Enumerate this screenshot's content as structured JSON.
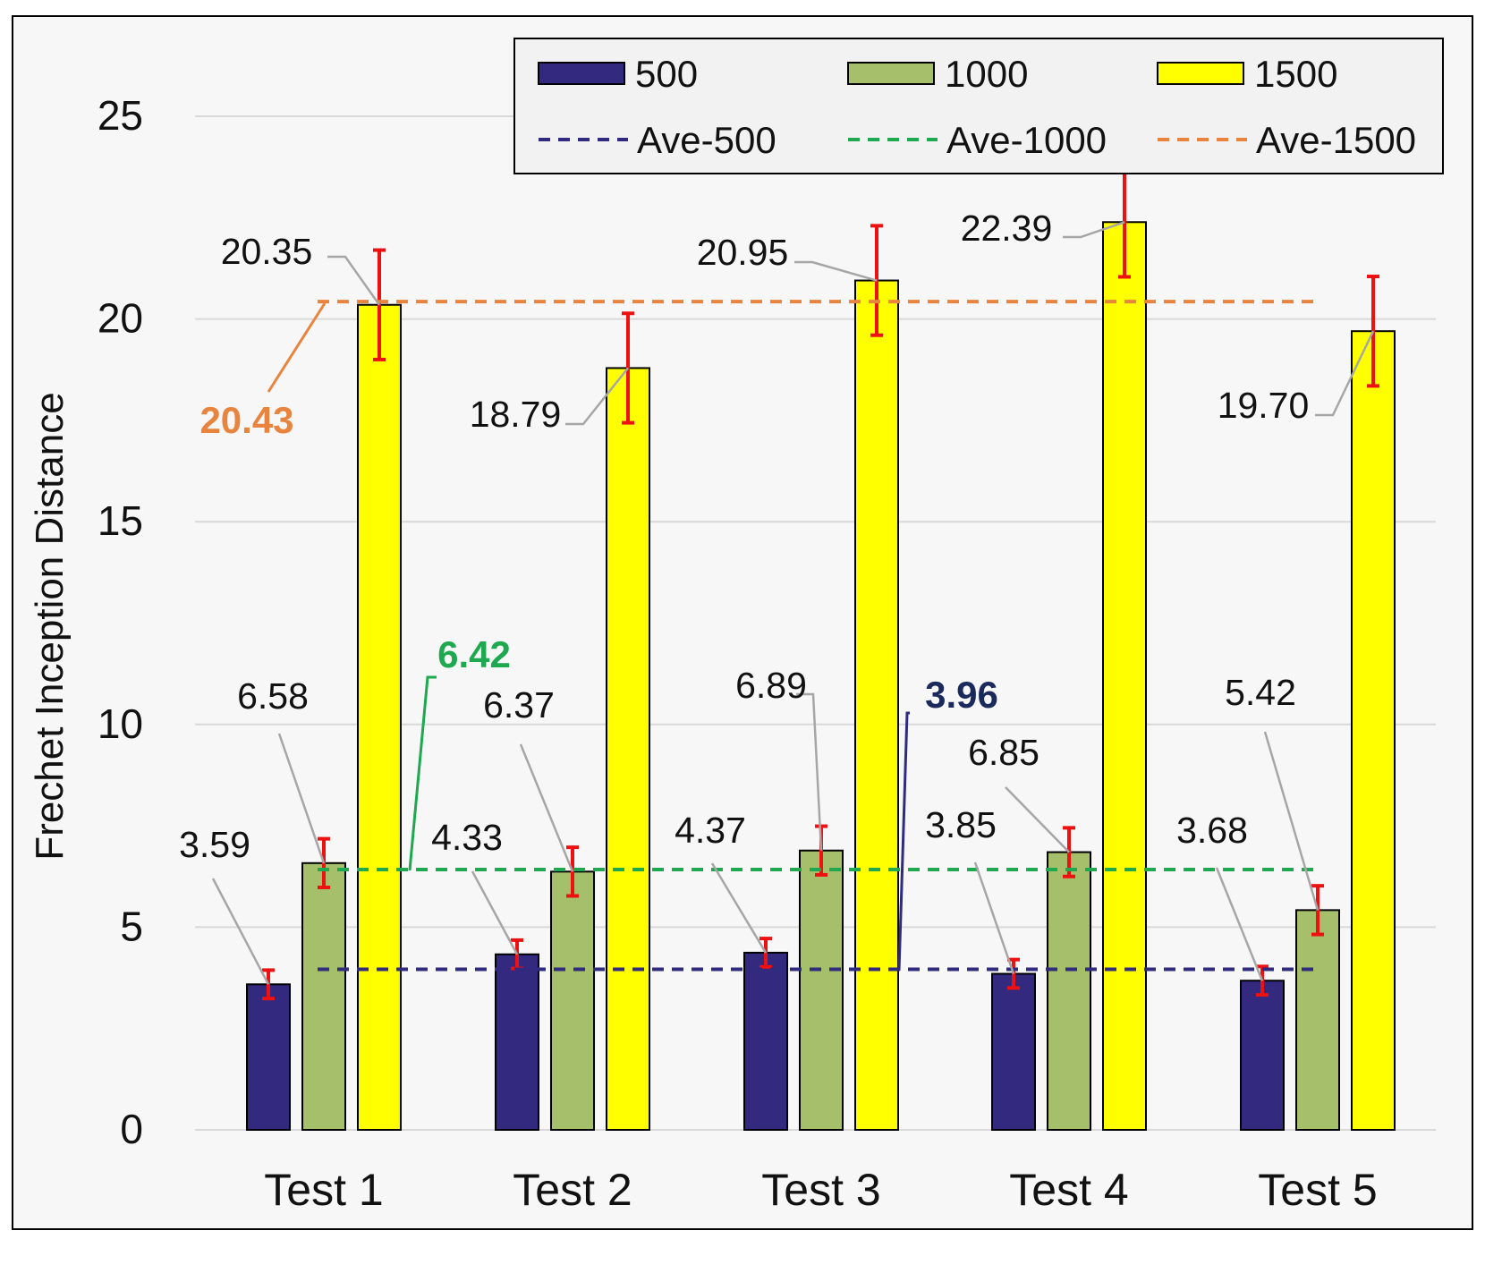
{
  "chart_data": {
    "type": "bar",
    "title": "",
    "xlabel": "",
    "ylabel": "Frechet Inception Distance",
    "ylim": [
      0,
      25
    ],
    "yticks": [
      0,
      5,
      10,
      15,
      20,
      25
    ],
    "grid": true,
    "categories": [
      "Test 1",
      "Test 2",
      "Test 3",
      "Test 4",
      "Test 5"
    ],
    "series": [
      {
        "name": "500",
        "color": "#332a80",
        "values": [
          3.59,
          4.33,
          4.37,
          3.85,
          3.68
        ],
        "errors": [
          0.35,
          0.35,
          0.35,
          0.35,
          0.35
        ],
        "labels": [
          "3.59",
          "4.33",
          "4.37",
          "3.85",
          "3.68"
        ]
      },
      {
        "name": "1000",
        "color": "#a5bf6a",
        "values": [
          6.58,
          6.37,
          6.89,
          6.85,
          5.42
        ],
        "errors": [
          0.6,
          0.6,
          0.6,
          0.6,
          0.6
        ],
        "labels": [
          "6.58",
          "6.37",
          "6.89",
          "6.85",
          "5.42"
        ]
      },
      {
        "name": "1500",
        "color": "#ffff00",
        "values": [
          20.35,
          18.79,
          20.95,
          22.39,
          19.7
        ],
        "errors": [
          1.35,
          1.35,
          1.35,
          1.35,
          1.35
        ],
        "labels": [
          "20.35",
          "18.79",
          "20.95",
          "22.39",
          "19.70"
        ]
      }
    ],
    "averages": [
      {
        "name": "Ave-500",
        "value": 3.96,
        "label": "3.96",
        "color": "#312b7f",
        "label_color": "#1b2a5c"
      },
      {
        "name": "Ave-1000",
        "value": 6.42,
        "label": "6.42",
        "color": "#1ea84f",
        "label_color": "#1ea84f"
      },
      {
        "name": "Ave-1500",
        "value": 20.43,
        "label": "20.43",
        "color": "#e8843e",
        "label_color": "#e8843e"
      }
    ],
    "legend_position": "top-right",
    "error_bar_color": "#ee1111"
  }
}
